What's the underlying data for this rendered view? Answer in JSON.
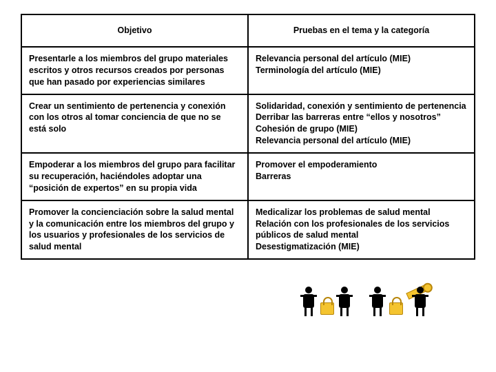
{
  "table": {
    "headers": {
      "col1": "Objetivo",
      "col2": "Pruebas en el tema y la categoría"
    },
    "rows": [
      {
        "objetivo": "Presentarle a los miembros del grupo materiales escritos y otros recursos creados por personas que han pasado por experiencias similares",
        "pruebas": "Relevancia personal del artículo (MIE)\nTerminología del artículo (MIE)"
      },
      {
        "objetivo": "Crear un sentimiento de pertenencia y conexión con los otros al tomar conciencia de que no se está solo",
        "pruebas": "Solidaridad, conexión y sentimiento de pertenencia\nDerribar las barreras entre “ellos y nosotros”\nCohesión de grupo (MIE)\nRelevancia personal del artículo (MIE)"
      },
      {
        "objetivo": "Empoderar a los miembros del grupo para facilitar su recuperación, haciéndoles adoptar una “posición de expertos” en su propia vida",
        "pruebas": "Promover el empoderamiento\nBarreras"
      },
      {
        "objetivo": "Promover la concienciación sobre la salud mental y la comunicación entre los miembros del grupo y los usuarios y profesionales de los servicios de salud mental",
        "pruebas": "Medicalizar los problemas de salud mental\nRelación con los profesionales de los servicios públicos de salud mental\nDesestigmatización (MIE)"
      }
    ]
  },
  "colors": {
    "border": "#000000",
    "background": "#ffffff",
    "lock_fill": "#f4c430",
    "lock_stroke": "#b8860b"
  },
  "fonts": {
    "body_pt": 12.5,
    "family": "Arial"
  }
}
